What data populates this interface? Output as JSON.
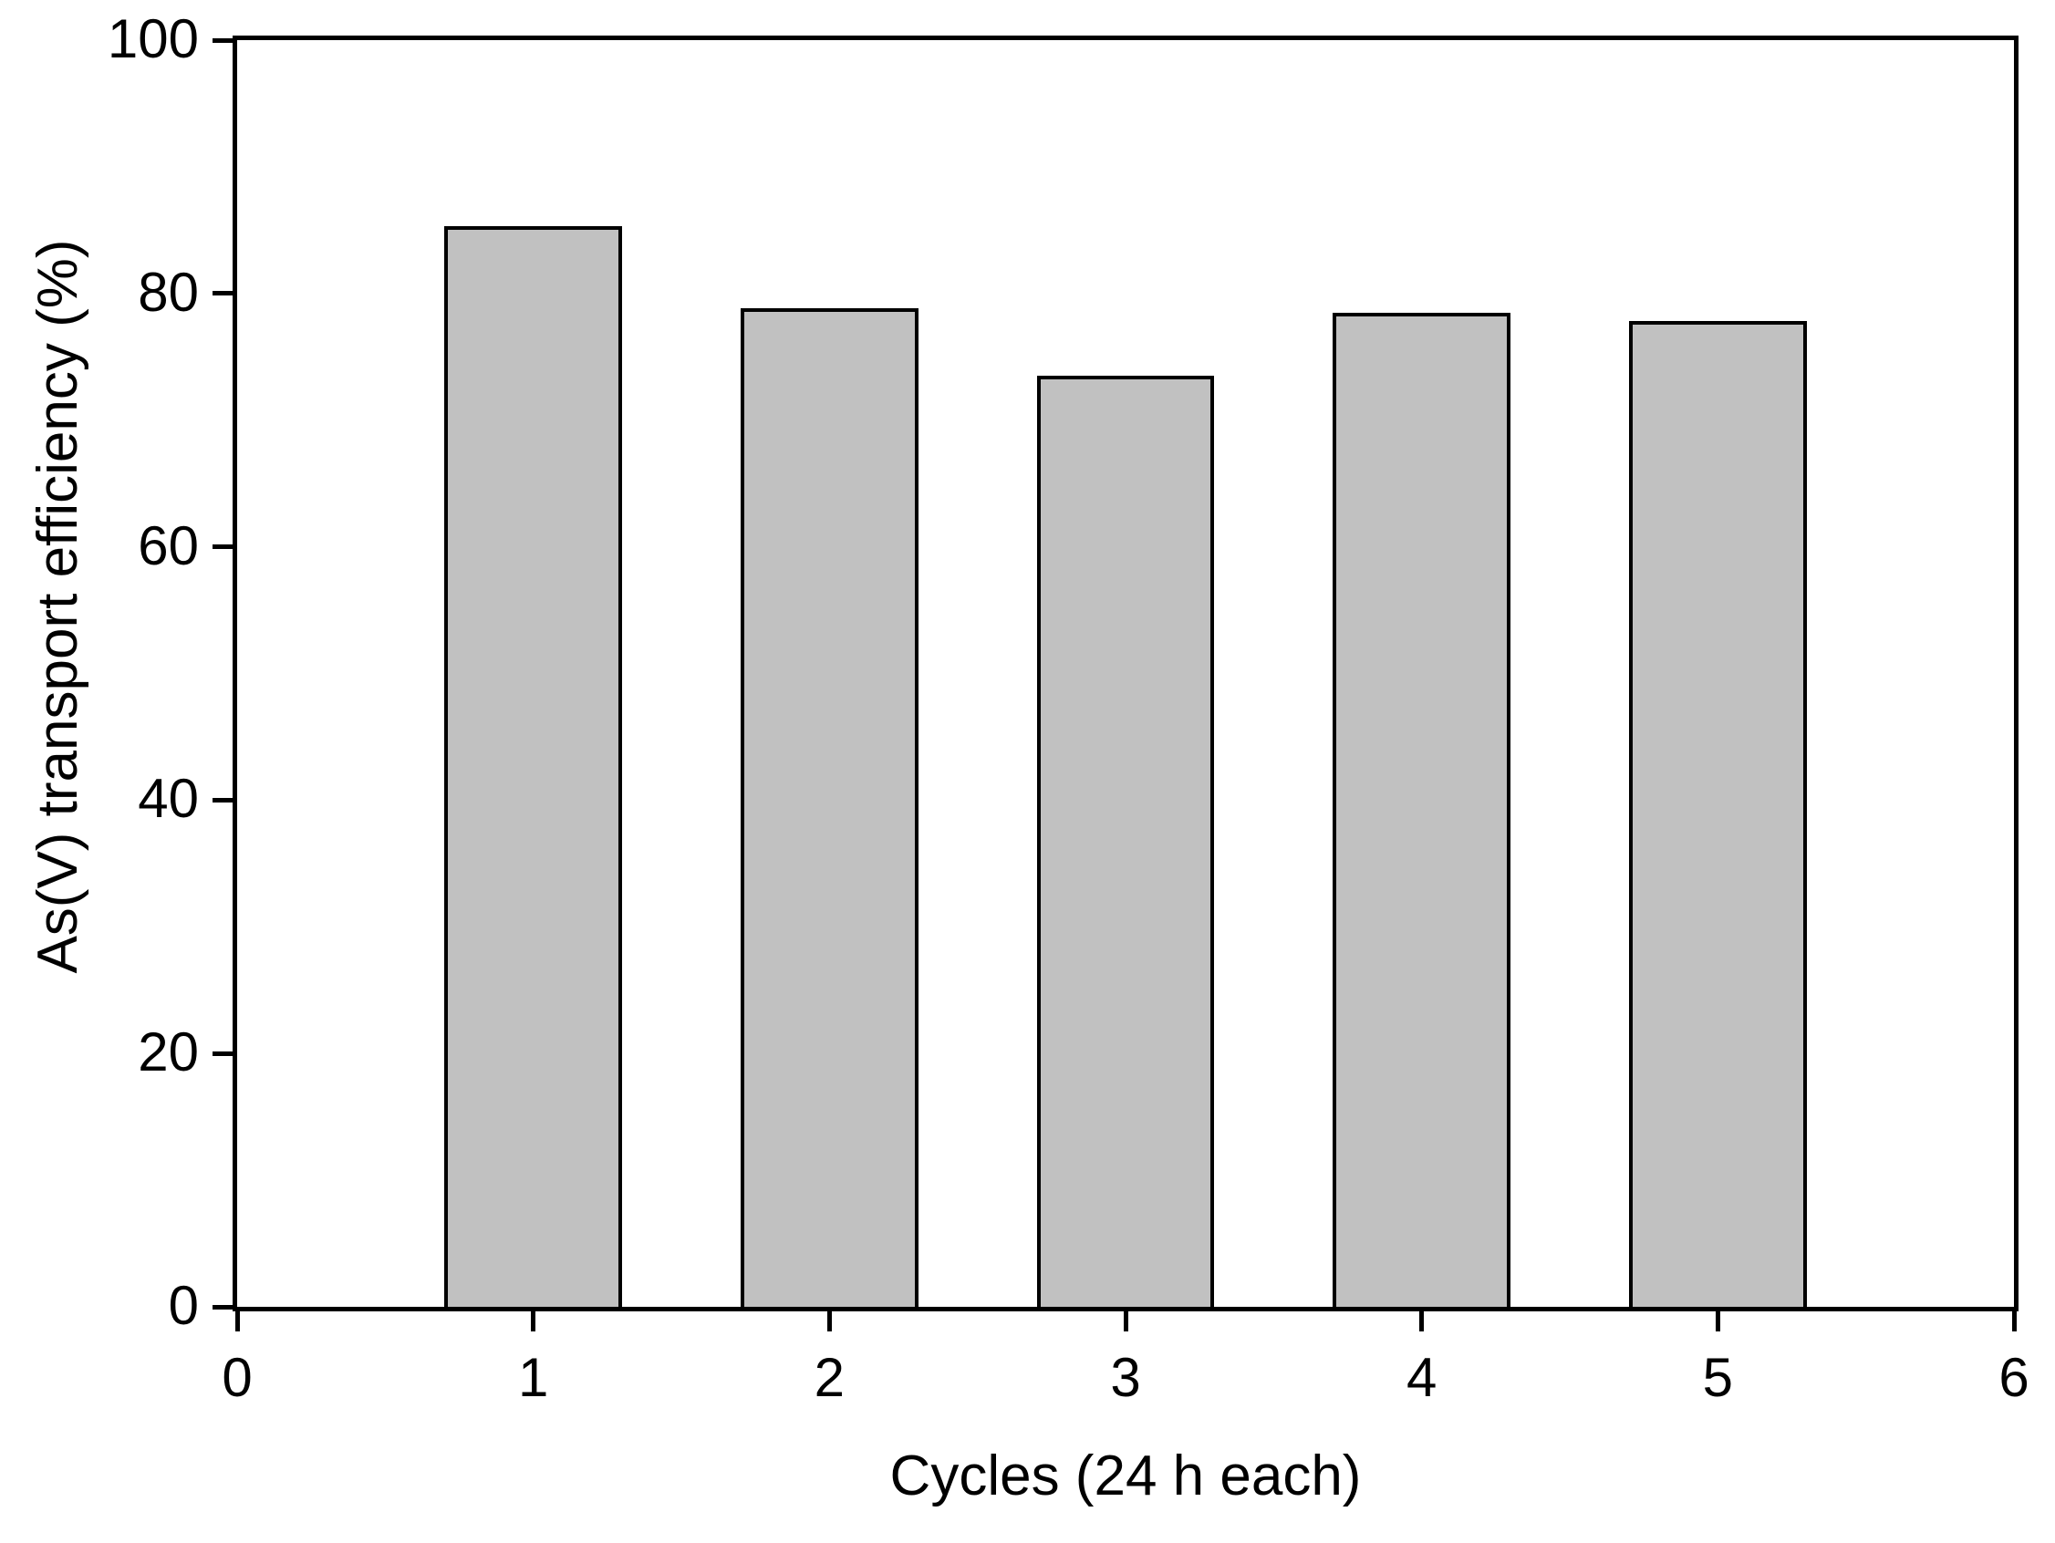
{
  "chart_data": {
    "type": "bar",
    "title": "",
    "xlabel": "Cycles (24 h each)",
    "ylabel": "As(V) transport efficiency (%)",
    "categories": [
      1,
      2,
      3,
      4,
      5
    ],
    "values": [
      85.3,
      78.8,
      73.5,
      78.5,
      77.8
    ],
    "x_ticks": [
      0,
      1,
      2,
      3,
      4,
      5,
      6
    ],
    "y_ticks": [
      0,
      20,
      40,
      60,
      80,
      100
    ],
    "xlim": [
      0,
      6
    ],
    "ylim": [
      0,
      100
    ],
    "bar_width_units": 0.6,
    "bar_fill": "#c1c1c1",
    "bar_border": "#000000",
    "axis_color": "#000000",
    "background": "#ffffff",
    "grid": false,
    "legend": "none"
  }
}
